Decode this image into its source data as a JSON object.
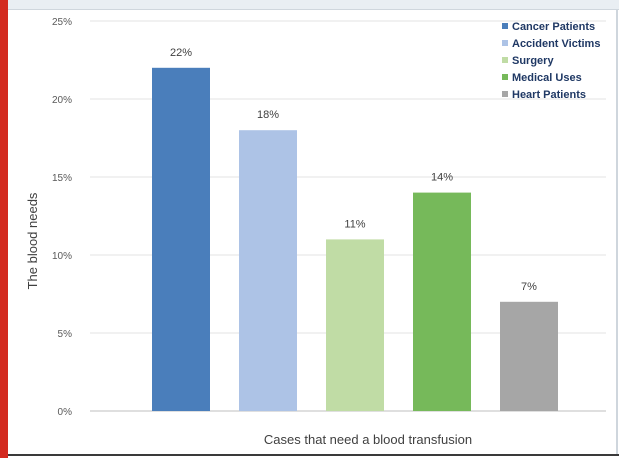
{
  "chart_data": {
    "type": "bar",
    "title": "",
    "xlabel": "Cases that need a blood transfusion",
    "ylabel": "The blood needs",
    "ylim": [
      0,
      25
    ],
    "yticks": [
      "0%",
      "5%",
      "10%",
      "15%",
      "20%",
      "25%"
    ],
    "categories": [
      "Cancer Patients",
      "Accident Victims",
      "Surgery",
      "Medical Uses",
      "Heart Patients"
    ],
    "values": [
      22,
      18,
      11,
      14,
      7
    ],
    "data_labels": [
      "22%",
      "18%",
      "11%",
      "14%",
      "7%"
    ],
    "colors": [
      "#4a7ebb",
      "#adc3e6",
      "#c0dca5",
      "#76b95a",
      "#a6a6a6"
    ],
    "legend_position": "top-right",
    "grid": true
  }
}
